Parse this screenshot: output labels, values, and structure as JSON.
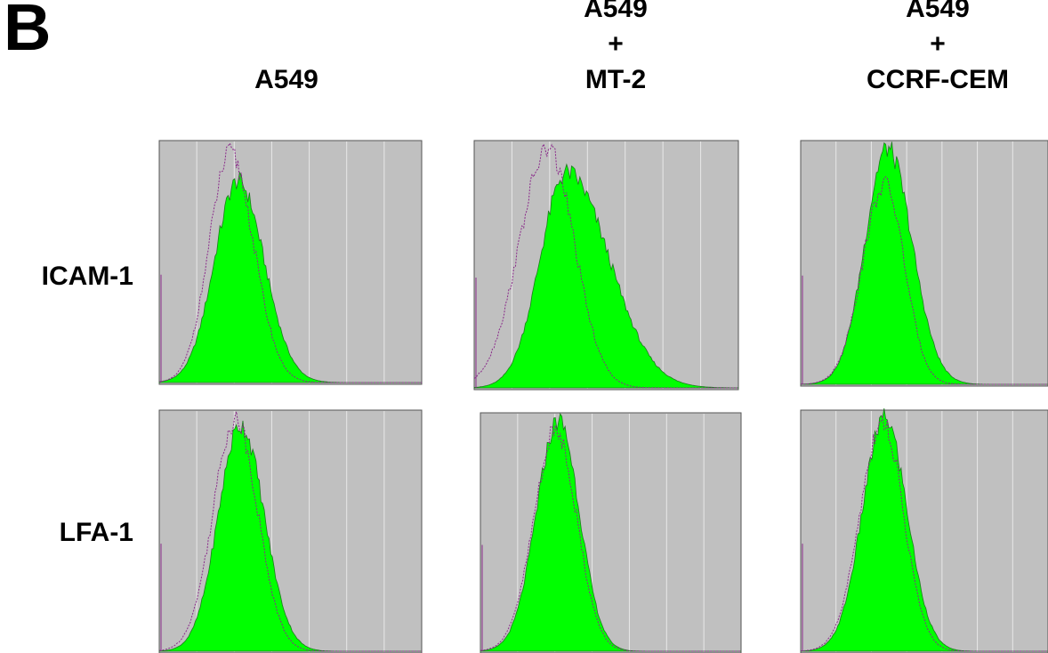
{
  "figure": {
    "panel_label": "B",
    "columns": [
      {
        "lines": [
          "",
          "",
          "A549"
        ]
      },
      {
        "lines": [
          "A549",
          "+",
          "MT-2"
        ]
      },
      {
        "lines": [
          "A549",
          "+",
          "CCRF-CEM"
        ]
      }
    ],
    "rows": [
      "ICAM-1",
      "LFA-1"
    ]
  },
  "colors": {
    "panel_bg": "#c0c0c0",
    "gridline": "#e8e8e8",
    "sample_fill": "#00ff00",
    "sample_edge": "#1e7a1e",
    "control_line": "#8a2a8a"
  },
  "chart_data": [
    {
      "type": "area",
      "row": "ICAM-1",
      "column": "A549",
      "xlim": [
        0,
        1
      ],
      "ylim": [
        0,
        1
      ],
      "x_decades": 7,
      "grid": true,
      "series": [
        {
          "role": "sample",
          "peak_x": 0.3,
          "height": 0.86,
          "width_left": 0.09,
          "width_right": 0.1
        },
        {
          "role": "control",
          "peak_x": 0.27,
          "height": 0.98,
          "width_left": 0.08,
          "width_right": 0.09
        }
      ]
    },
    {
      "type": "area",
      "row": "ICAM-1",
      "column": "A549 + MT-2",
      "xlim": [
        0,
        1
      ],
      "ylim": [
        0,
        1
      ],
      "x_decades": 7,
      "grid": true,
      "series": [
        {
          "role": "sample",
          "peak_x": 0.35,
          "height": 0.9,
          "width_left": 0.1,
          "width_right": 0.16
        },
        {
          "role": "control",
          "peak_x": 0.28,
          "height": 1.0,
          "width_left": 0.11,
          "width_right": 0.1
        }
      ]
    },
    {
      "type": "area",
      "row": "ICAM-1",
      "column": "A549 + CCRF-CEM",
      "xlim": [
        0,
        1
      ],
      "ylim": [
        0,
        1
      ],
      "x_decades": 7,
      "grid": true,
      "series": [
        {
          "role": "sample",
          "peak_x": 0.35,
          "height": 1.0,
          "width_left": 0.09,
          "width_right": 0.1
        },
        {
          "role": "control",
          "peak_x": 0.34,
          "height": 0.85,
          "width_left": 0.09,
          "width_right": 0.08
        }
      ]
    },
    {
      "type": "area",
      "row": "LFA-1",
      "column": "A549",
      "xlim": [
        0,
        1
      ],
      "ylim": [
        0,
        1
      ],
      "x_decades": 7,
      "grid": true,
      "series": [
        {
          "role": "sample",
          "peak_x": 0.31,
          "height": 0.97,
          "width_left": 0.085,
          "width_right": 0.09
        },
        {
          "role": "control",
          "peak_x": 0.29,
          "height": 1.0,
          "width_left": 0.085,
          "width_right": 0.085
        }
      ]
    },
    {
      "type": "area",
      "row": "LFA-1",
      "column": "A549 + MT-2",
      "xlim": [
        0,
        1
      ],
      "ylim": [
        0,
        1
      ],
      "x_decades": 7,
      "grid": true,
      "series": [
        {
          "role": "sample",
          "peak_x": 0.3,
          "height": 1.0,
          "width_left": 0.085,
          "width_right": 0.08
        },
        {
          "role": "control",
          "peak_x": 0.29,
          "height": 0.96,
          "width_left": 0.085,
          "width_right": 0.08
        }
      ]
    },
    {
      "type": "area",
      "row": "LFA-1",
      "column": "A549 + CCRF-CEM",
      "xlim": [
        0,
        1
      ],
      "ylim": [
        0,
        1
      ],
      "x_decades": 7,
      "grid": true,
      "series": [
        {
          "role": "sample",
          "peak_x": 0.34,
          "height": 1.0,
          "width_left": 0.09,
          "width_right": 0.09
        },
        {
          "role": "control",
          "peak_x": 0.33,
          "height": 0.99,
          "width_left": 0.09,
          "width_right": 0.085
        }
      ]
    }
  ]
}
